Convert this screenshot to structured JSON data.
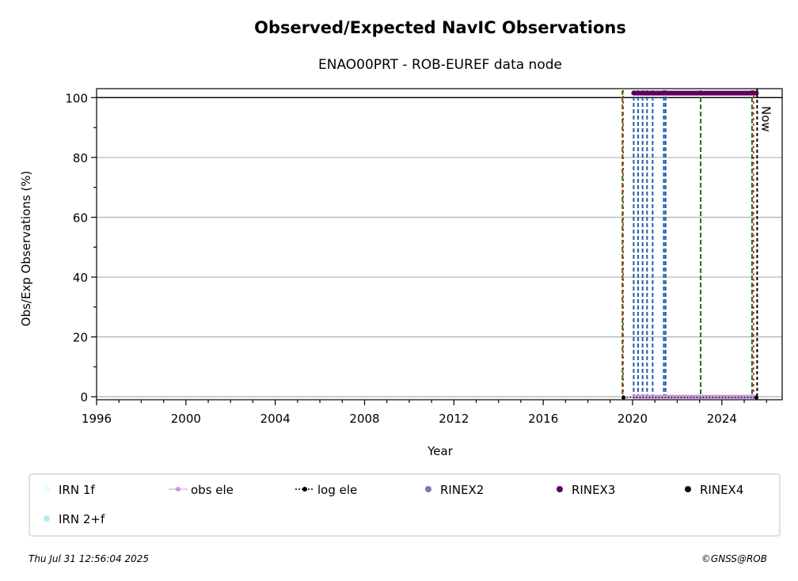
{
  "chart_data": {
    "type": "scatter",
    "title": "Observed/Expected NavIC Observations",
    "subtitle": "ENAO00PRT - ROB-EUREF data node",
    "xlabel": "Year",
    "ylabel": "Obs/Exp Observations (%)",
    "xlim": [
      1996,
      2026.7
    ],
    "ylim": [
      -1,
      103
    ],
    "xticks": [
      1996,
      2000,
      2004,
      2008,
      2012,
      2016,
      2020,
      2024
    ],
    "yticks": [
      0,
      20,
      40,
      60,
      80,
      100
    ],
    "grid": "y",
    "reference_line_y": 100,
    "now": {
      "x": 2025.58,
      "label": "Now"
    },
    "vlines": {
      "green": [
        2019.55,
        2023.05,
        2025.35
      ],
      "red": [
        2019.58,
        2025.42
      ],
      "blue": [
        2020.05,
        2020.25,
        2020.45,
        2020.65,
        2020.9,
        2021.4,
        2021.48
      ]
    },
    "series": [
      {
        "name": "IRN 1f",
        "color": "#e0ffff",
        "points": []
      },
      {
        "name": "IRN 2+f",
        "color": "#aff0f0",
        "points": []
      },
      {
        "name": "obs ele",
        "color": "#c896dc",
        "x_range": [
          2020.0,
          2025.55
        ],
        "y": 0
      },
      {
        "name": "log ele",
        "color": "#000000",
        "x_range": [
          2019.6,
          2025.55
        ],
        "y": 0
      },
      {
        "name": "RINEX2",
        "color": "#7b78b8",
        "points": []
      },
      {
        "name": "RINEX3",
        "color": "#600060",
        "x_range": [
          2020.05,
          2025.55
        ],
        "y": 101.5
      },
      {
        "name": "RINEX4",
        "color": "#1a0018",
        "points": []
      }
    ],
    "legend_placement": "bottom"
  },
  "footer": {
    "timestamp": "Thu Jul 31 12:56:04 2025",
    "credit": "©GNSS@ROB"
  }
}
